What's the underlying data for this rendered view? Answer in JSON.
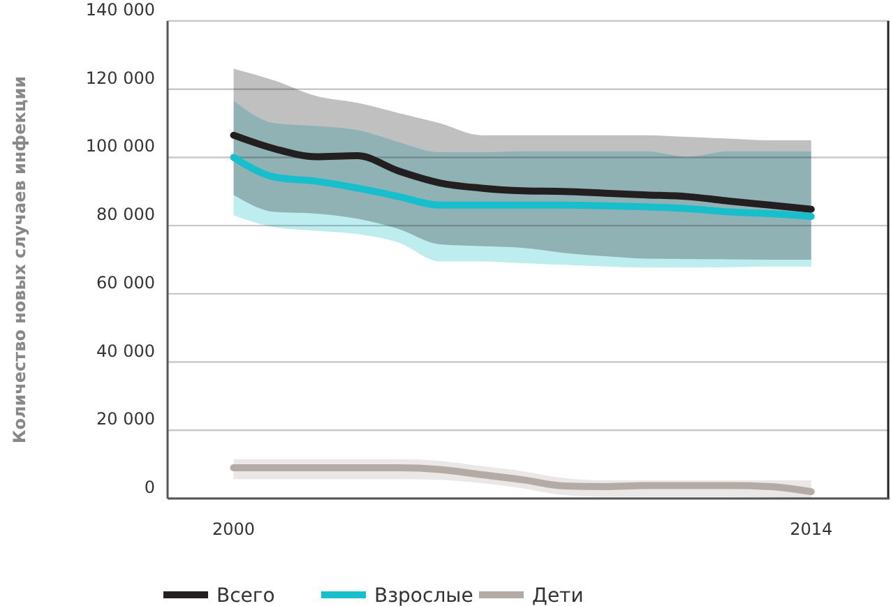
{
  "chart_data": {
    "type": "line",
    "ylabel": "Количество новых случаев инфекции",
    "x": [
      2000,
      2001,
      2002,
      2003,
      2004,
      2005,
      2006,
      2007,
      2008,
      2009,
      2010,
      2011,
      2012,
      2013,
      2014
    ],
    "xlim": [
      1998.4,
      2015.9
    ],
    "xticks": [
      2000,
      2014
    ],
    "ylim": [
      0,
      140000
    ],
    "yticks": [
      0,
      {
        "value": 20000,
        "label": "20 000"
      },
      {
        "value": 40000,
        "label": "40 000"
      },
      {
        "value": 60000,
        "label": "60 000"
      },
      {
        "value": 80000,
        "label": "80 000"
      },
      {
        "value": 100000,
        "label": "100 000"
      },
      {
        "value": 120000,
        "label": "120 000"
      },
      {
        "value": 140000,
        "label": "140 000"
      }
    ],
    "grid": "y",
    "legend": "bottom",
    "series": [
      {
        "name": "Всего",
        "color": "#231f20",
        "values": [
          106500,
          102500,
          100200,
          100500,
          96000,
          92500,
          91000,
          90200,
          90000,
          89500,
          89000,
          88500,
          87200,
          86000,
          84800
        ],
        "lower": [
          89000,
          84000,
          83500,
          82000,
          79000,
          74500,
          74000,
          73500,
          72000,
          71000,
          70300,
          70200,
          70100,
          70000,
          70000
        ],
        "upper": [
          126000,
          122500,
          118000,
          116000,
          113000,
          110000,
          106500,
          106500,
          106500,
          106500,
          106500,
          106000,
          105500,
          105000,
          105000
        ]
      },
      {
        "name": "Взрослые",
        "color": "#17becb",
        "values": [
          100000,
          94200,
          93000,
          91000,
          88500,
          86000,
          86000,
          86000,
          86000,
          85800,
          85500,
          85000,
          84000,
          83500,
          82700
        ],
        "lower": [
          83000,
          79500,
          78500,
          77500,
          75000,
          69500,
          69500,
          69000,
          68500,
          68000,
          67700,
          67700,
          67800,
          68000,
          68000
        ],
        "upper": [
          116600,
          110000,
          109200,
          108000,
          104500,
          101500,
          101500,
          101800,
          101800,
          101800,
          101800,
          100200,
          101800,
          101800,
          101800
        ]
      },
      {
        "name": "Дети",
        "color": "#b5aba6",
        "values": [
          9000,
          9000,
          9000,
          9000,
          9000,
          8500,
          7000,
          5500,
          3700,
          3500,
          3800,
          3800,
          3800,
          3500,
          2000
        ],
        "lower": [
          5700,
          5700,
          5700,
          5700,
          5700,
          5500,
          4500,
          3000,
          1000,
          500,
          500,
          500,
          500,
          300,
          0
        ],
        "upper": [
          11500,
          11500,
          11500,
          11500,
          11500,
          11000,
          9500,
          8000,
          6000,
          5300,
          5300,
          5300,
          5300,
          5300,
          5300
        ]
      }
    ]
  }
}
